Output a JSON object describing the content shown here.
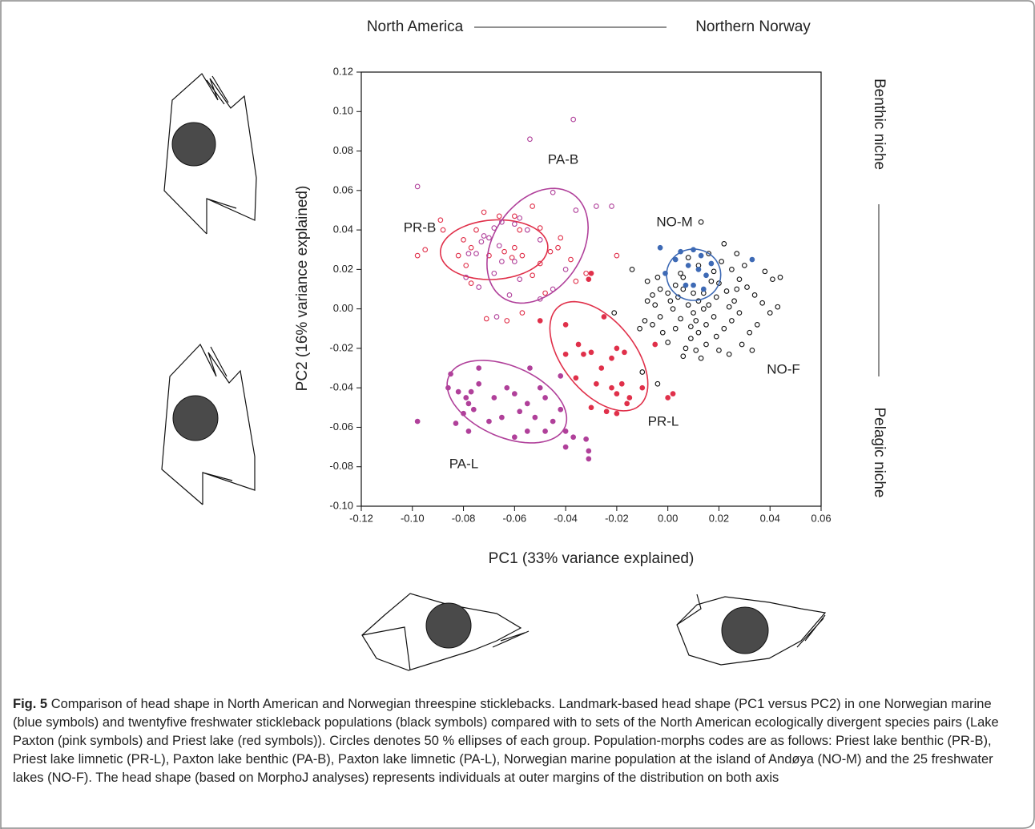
{
  "chart_data": {
    "type": "scatter",
    "top_left": "North America",
    "top_right": "Northern Norway",
    "right_top": "Benthic niche",
    "right_bottom": "Pelagic niche",
    "x_label": "PC1 (33% variance explained)",
    "y_label": "PC2 (16% variance explained)",
    "xlim": [
      -0.12,
      0.06
    ],
    "ylim": [
      -0.1,
      0.12
    ],
    "xticks": [
      {
        "value": -0.12,
        "label": "-0.12"
      },
      {
        "value": -0.1,
        "label": "-0.10"
      },
      {
        "value": -0.08,
        "label": "-0.08"
      },
      {
        "value": -0.06,
        "label": "-0.06"
      },
      {
        "value": -0.04,
        "label": "-0.04"
      },
      {
        "value": -0.02,
        "label": "-0.02"
      },
      {
        "value": 0,
        "label": "0.00"
      },
      {
        "value": 0.02,
        "label": "0.02"
      },
      {
        "value": 0.04,
        "label": "0.04"
      },
      {
        "value": 0.06,
        "label": "0.06"
      }
    ],
    "yticks": [
      {
        "value": -0.1,
        "label": "-0.10"
      },
      {
        "value": -0.08,
        "label": "-0.08"
      },
      {
        "value": -0.06,
        "label": "-0.06"
      },
      {
        "value": -0.04,
        "label": "-0.04"
      },
      {
        "value": -0.02,
        "label": "-0.02"
      },
      {
        "value": 0,
        "label": "0.00"
      },
      {
        "value": 0.02,
        "label": "0.02"
      },
      {
        "value": 0.04,
        "label": "0.04"
      },
      {
        "value": 0.06,
        "label": "0.06"
      },
      {
        "value": 0.08,
        "label": "0.08"
      },
      {
        "value": 0.1,
        "label": "0.10"
      },
      {
        "value": 0.12,
        "label": "0.12"
      }
    ],
    "series": [
      {
        "name": "PA-B",
        "color": "#b0409a",
        "marker": "open",
        "x": [
          -0.037,
          -0.054,
          -0.098,
          -0.045,
          -0.028,
          -0.036,
          -0.022,
          -0.058,
          -0.065,
          -0.068,
          -0.072,
          -0.06,
          -0.055,
          -0.066,
          -0.073,
          -0.05,
          -0.075,
          -0.065,
          -0.06,
          -0.078,
          -0.068,
          -0.074,
          -0.045,
          -0.062,
          -0.05,
          -0.067,
          -0.079,
          -0.058,
          -0.04,
          -0.07
        ],
        "values": [
          0.096,
          0.086,
          0.062,
          0.059,
          0.052,
          0.05,
          0.052,
          0.046,
          0.044,
          0.041,
          0.037,
          0.043,
          0.04,
          0.032,
          0.034,
          0.035,
          0.028,
          0.024,
          0.024,
          0.028,
          0.018,
          0.011,
          0.01,
          0.007,
          0.005,
          -0.004,
          0.016,
          0.015,
          0.02,
          0.036
        ],
        "ellipse": {
          "center": [
            -0.051,
            0.032
          ],
          "axis1": [
            0.014,
            0.026
          ],
          "axis2": [
            0.014,
            -0.013
          ]
        }
      },
      {
        "name": "PR-B",
        "color": "#e0304a",
        "marker": "open",
        "x": [
          -0.089,
          -0.088,
          -0.095,
          -0.098,
          -0.08,
          -0.077,
          -0.075,
          -0.082,
          -0.079,
          -0.07,
          -0.064,
          -0.06,
          -0.061,
          -0.057,
          -0.058,
          -0.066,
          -0.072,
          -0.06,
          -0.05,
          -0.053,
          -0.042,
          -0.046,
          -0.05,
          -0.053,
          -0.038,
          -0.036,
          -0.048,
          -0.071,
          -0.063,
          -0.057,
          -0.02,
          -0.032,
          -0.043,
          -0.077
        ],
        "values": [
          0.045,
          0.04,
          0.03,
          0.027,
          0.035,
          0.031,
          0.04,
          0.027,
          0.022,
          0.027,
          0.029,
          0.031,
          0.026,
          0.027,
          0.04,
          0.047,
          0.049,
          0.047,
          0.041,
          0.052,
          0.036,
          0.029,
          0.023,
          0.017,
          0.025,
          0.014,
          0.008,
          -0.005,
          -0.006,
          -0.002,
          0.027,
          0.018,
          0.031,
          0.013
        ],
        "ellipse": {
          "center": [
            -0.068,
            0.03
          ],
          "axis1": [
            0.021,
            0.002
          ],
          "axis2": [
            -0.001,
            0.015
          ]
        }
      },
      {
        "name": "PR-L",
        "color": "#e0304a",
        "marker": "filled",
        "x": [
          -0.03,
          -0.031,
          -0.04,
          -0.035,
          -0.033,
          -0.04,
          -0.03,
          -0.026,
          -0.036,
          -0.022,
          -0.02,
          -0.017,
          -0.028,
          -0.022,
          -0.018,
          -0.024,
          -0.03,
          -0.02,
          -0.016,
          -0.015,
          -0.01,
          -0.005,
          0.0,
          0.002,
          -0.02,
          -0.025,
          -0.05
        ],
        "values": [
          0.018,
          0.015,
          -0.008,
          -0.018,
          -0.023,
          -0.023,
          -0.022,
          -0.03,
          -0.035,
          -0.025,
          -0.02,
          -0.022,
          -0.038,
          -0.04,
          -0.038,
          -0.052,
          -0.05,
          -0.043,
          -0.048,
          -0.045,
          -0.04,
          -0.018,
          -0.045,
          -0.043,
          -0.053,
          -0.004,
          -0.006
        ],
        "ellipse": {
          "center": [
            -0.027,
            -0.024
          ],
          "axis1": [
            0.0157,
            -0.0252
          ],
          "axis2": [
            0.011,
            0.0114
          ]
        }
      },
      {
        "name": "PA-L",
        "color": "#b0409a",
        "marker": "filled",
        "x": [
          -0.085,
          -0.086,
          -0.082,
          -0.077,
          -0.079,
          -0.074,
          -0.078,
          -0.076,
          -0.08,
          -0.083,
          -0.078,
          -0.098,
          -0.068,
          -0.063,
          -0.06,
          -0.058,
          -0.065,
          -0.07,
          -0.055,
          -0.052,
          -0.05,
          -0.048,
          -0.045,
          -0.042,
          -0.048,
          -0.055,
          -0.06,
          -0.04,
          -0.037,
          -0.04,
          -0.032,
          -0.031,
          -0.031,
          -0.054,
          -0.042,
          -0.074
        ],
        "values": [
          -0.033,
          -0.04,
          -0.042,
          -0.042,
          -0.045,
          -0.038,
          -0.048,
          -0.051,
          -0.053,
          -0.058,
          -0.062,
          -0.057,
          -0.045,
          -0.04,
          -0.043,
          -0.052,
          -0.055,
          -0.057,
          -0.048,
          -0.055,
          -0.04,
          -0.045,
          -0.057,
          -0.051,
          -0.062,
          -0.062,
          -0.065,
          -0.062,
          -0.065,
          -0.07,
          -0.066,
          -0.072,
          -0.076,
          -0.03,
          -0.034,
          -0.03
        ],
        "ellipse": {
          "center": [
            -0.063,
            -0.047
          ],
          "axis1": [
            0.0232,
            -0.0061
          ],
          "axis2": [
            -0.003,
            0.02
          ]
        }
      },
      {
        "name": "NO-M",
        "color": "#3e6ab5",
        "marker": "filled",
        "x": [
          -0.003,
          0.005,
          0.01,
          0.013,
          0.017,
          0.012,
          0.008,
          0.003,
          0.033,
          0.015,
          0.007,
          -0.001,
          0.01,
          0.014
        ],
        "values": [
          0.031,
          0.029,
          0.03,
          0.027,
          0.023,
          0.02,
          0.022,
          0.025,
          0.025,
          0.017,
          0.012,
          0.018,
          0.012,
          0.01
        ],
        "ellipse": {
          "center": [
            0.0101,
            0.0173
          ],
          "axis1": [
            0.0106,
            0
          ],
          "axis2": [
            0,
            0.013
          ]
        }
      },
      {
        "name": "NO-F",
        "color": "#111111",
        "marker": "open",
        "x": [
          -0.008,
          -0.005,
          -0.003,
          -0.006,
          -0.002,
          0.0,
          0.003,
          0.005,
          0.002,
          0.004,
          0.006,
          0.003,
          0.0,
          -0.003,
          -0.006,
          0.008,
          0.01,
          0.012,
          0.014,
          0.016,
          0.018,
          0.015,
          0.012,
          0.009,
          0.007,
          0.011,
          0.015,
          0.019,
          0.022,
          0.025,
          0.028,
          0.026,
          0.023,
          0.02,
          0.018,
          0.021,
          0.025,
          0.028,
          0.031,
          0.034,
          0.037,
          0.04,
          0.043,
          0.041,
          0.044,
          0.038,
          0.035,
          0.032,
          0.029,
          0.033,
          0.024,
          0.02,
          0.013,
          0.006,
          0.005,
          0.008,
          0.012,
          0.016,
          0.022,
          0.027,
          0.03,
          0.017,
          0.01,
          0.006,
          0.001,
          -0.009,
          -0.011,
          -0.004,
          -0.008,
          0.013,
          -0.014,
          -0.021,
          -0.01,
          -0.004,
          0.011,
          0.019,
          0.024,
          0.027,
          0.009,
          0.014
        ],
        "values": [
          0.004,
          0.002,
          -0.004,
          -0.008,
          -0.012,
          -0.017,
          -0.01,
          -0.005,
          0.0,
          0.006,
          0.01,
          0.012,
          0.008,
          0.01,
          0.007,
          0.002,
          -0.002,
          0.004,
          0.008,
          0.002,
          -0.004,
          -0.008,
          -0.012,
          -0.015,
          -0.02,
          -0.021,
          -0.018,
          -0.014,
          -0.01,
          -0.006,
          -0.002,
          0.004,
          0.009,
          0.013,
          0.019,
          0.024,
          0.02,
          0.015,
          0.011,
          0.007,
          0.003,
          -0.002,
          0.001,
          0.015,
          0.016,
          0.019,
          -0.008,
          -0.012,
          -0.018,
          -0.021,
          -0.023,
          -0.021,
          -0.025,
          -0.024,
          0.018,
          0.026,
          0.022,
          0.028,
          0.033,
          0.028,
          0.022,
          0.014,
          0.008,
          0.016,
          0.004,
          -0.006,
          -0.01,
          0.016,
          0.014,
          0.044,
          0.02,
          -0.002,
          -0.032,
          -0.038,
          -0.006,
          0.006,
          0.001,
          0.01,
          -0.009,
          0.0
        ]
      }
    ]
  },
  "caption": {
    "label": "Fig. 5",
    "text": "Comparison of head shape in North American and Norwegian threespine sticklebacks. Landmark-based head shape (PC1 versus PC2) in one Norwegian marine (blue symbols) and twentyfive freshwater stickleback populations (black symbols) compared with to sets of the North American ecologically divergent species pairs (Lake Paxton (pink symbols) and Priest lake (red symbols)). Circles denotes 50 % ellipses of each group. Population-morphs codes are as follows: Priest lake benthic (PR-B), Priest lake limnetic (PR-L), Paxton lake benthic (PA-B), Paxton lake limnetic (PA-L), Norwegian marine population at the island of Andøya (NO-M) and the 25 freshwater lakes (NO-F). The head shape (based on MorphoJ analyses) represents individuals at outer margins of the distribution on both axis"
  }
}
